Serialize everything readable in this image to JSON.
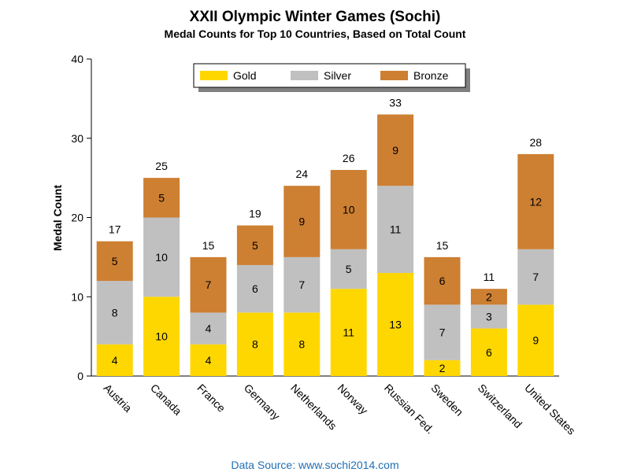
{
  "chart_data": {
    "type": "bar",
    "stacked": true,
    "title": "XXII Olympic Winter Games (Sochi)",
    "subtitle": "Medal Counts for Top 10 Countries, Based on Total Count",
    "xlabel": "",
    "ylabel": "Medal Count",
    "ylim": [
      0,
      40
    ],
    "yticks": [
      0,
      10,
      20,
      30,
      40
    ],
    "categories": [
      "Austria",
      "Canada",
      "France",
      "Germany",
      "Netherlands",
      "Norway",
      "Russian Fed.",
      "Sweden",
      "Switzerland",
      "United States"
    ],
    "series": [
      {
        "name": "Gold",
        "color": "#FFD700",
        "values": [
          4,
          10,
          4,
          8,
          8,
          11,
          13,
          2,
          6,
          9
        ]
      },
      {
        "name": "Silver",
        "color": "#C0C0C0",
        "values": [
          8,
          10,
          4,
          6,
          7,
          5,
          11,
          7,
          3,
          7
        ]
      },
      {
        "name": "Bronze",
        "color": "#CD7F32",
        "values": [
          5,
          5,
          7,
          5,
          9,
          10,
          9,
          6,
          2,
          12
        ]
      }
    ],
    "totals": [
      17,
      25,
      15,
      19,
      24,
      26,
      33,
      15,
      11,
      28
    ],
    "legend_position": "top-center",
    "grid": false,
    "footnote": "Data Source: www.sochi2014.com",
    "footnote_color": "#1F6FB5"
  }
}
